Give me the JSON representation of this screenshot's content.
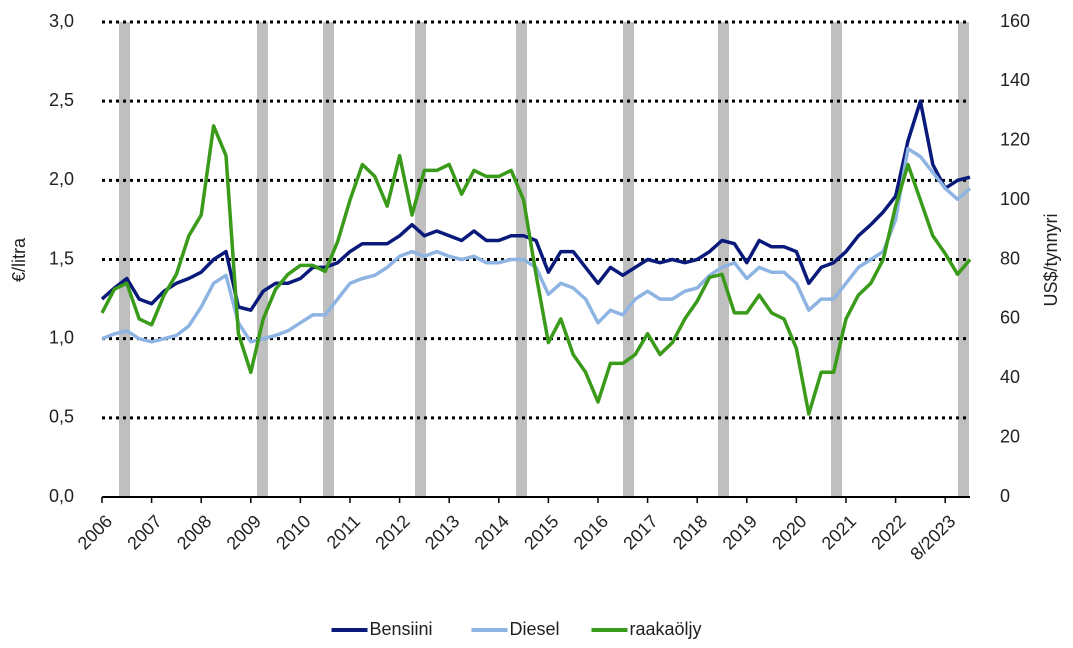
{
  "chart_data": {
    "type": "line",
    "categories": [
      "2006",
      null,
      null,
      null,
      "2007",
      null,
      null,
      null,
      "2008",
      null,
      null,
      null,
      "2009",
      null,
      null,
      null,
      "2010",
      null,
      null,
      null,
      "2011",
      null,
      null,
      null,
      "2012",
      null,
      null,
      null,
      "2013",
      null,
      null,
      null,
      "2014",
      null,
      null,
      null,
      "2015",
      null,
      null,
      null,
      "2016",
      null,
      null,
      null,
      "2017",
      null,
      null,
      null,
      "2018",
      null,
      null,
      null,
      "2019",
      null,
      null,
      null,
      "2020",
      null,
      null,
      null,
      "2021",
      null,
      null,
      null,
      "2022",
      null,
      null,
      null,
      "8/2023",
      null,
      null
    ],
    "ylabel": "€/litra",
    "y2label": "US$/tynnyri",
    "ylim": [
      0,
      3
    ],
    "yticks": [
      {
        "value": 0,
        "label": "0,0"
      },
      {
        "value": 0.5,
        "label": "0,5"
      },
      {
        "value": 1,
        "label": "1,0"
      },
      {
        "value": 1.5,
        "label": "1,5"
      },
      {
        "value": 2,
        "label": "2,0"
      },
      {
        "value": 2.5,
        "label": "2,5"
      },
      {
        "value": 3,
        "label": "3,0"
      }
    ],
    "y2lim": [
      0,
      160
    ],
    "y2ticks": [
      0,
      20,
      40,
      60,
      80,
      100,
      120,
      140,
      160
    ],
    "grid": true,
    "legend": "bottom",
    "series": [
      {
        "name": "Bensiini",
        "color": "#0a1a7a",
        "values": [
          1.25,
          1.32,
          1.38,
          1.25,
          1.22,
          1.3,
          1.35,
          1.38,
          1.42,
          1.5,
          1.55,
          1.2,
          1.18,
          1.3,
          1.35,
          1.35,
          1.38,
          1.45,
          1.45,
          1.48,
          1.55,
          1.6,
          1.6,
          1.6,
          1.65,
          1.72,
          1.65,
          1.68,
          1.65,
          1.62,
          1.68,
          1.62,
          1.62,
          1.65,
          1.65,
          1.62,
          1.42,
          1.55,
          1.55,
          1.45,
          1.35,
          1.45,
          1.4,
          1.45,
          1.5,
          1.48,
          1.5,
          1.48,
          1.5,
          1.55,
          1.62,
          1.6,
          1.48,
          1.62,
          1.58,
          1.58,
          1.55,
          1.35,
          1.45,
          1.48,
          1.55,
          1.65,
          1.72,
          1.8,
          1.9,
          2.25,
          2.5,
          2.1,
          1.95,
          2.0,
          2.02
        ]
      },
      {
        "name": "Diesel",
        "color": "#8db4e2",
        "values": [
          1.0,
          1.03,
          1.05,
          1.0,
          0.98,
          1.0,
          1.02,
          1.08,
          1.2,
          1.35,
          1.4,
          1.1,
          0.98,
          1.0,
          1.02,
          1.05,
          1.1,
          1.15,
          1.15,
          1.25,
          1.35,
          1.38,
          1.4,
          1.45,
          1.52,
          1.55,
          1.52,
          1.55,
          1.52,
          1.5,
          1.52,
          1.48,
          1.48,
          1.5,
          1.5,
          1.45,
          1.28,
          1.35,
          1.32,
          1.25,
          1.1,
          1.18,
          1.15,
          1.25,
          1.3,
          1.25,
          1.25,
          1.3,
          1.32,
          1.4,
          1.45,
          1.48,
          1.38,
          1.45,
          1.42,
          1.42,
          1.35,
          1.18,
          1.25,
          1.25,
          1.35,
          1.45,
          1.5,
          1.55,
          1.75,
          2.2,
          2.15,
          2.05,
          1.95,
          1.88,
          1.95
        ]
      },
      {
        "name": "raakaöljy",
        "color": "#3a9a1a",
        "axis": "y2",
        "values": [
          62,
          70,
          72,
          60,
          58,
          68,
          75,
          88,
          95,
          125,
          115,
          55,
          42,
          60,
          70,
          75,
          78,
          78,
          76,
          86,
          100,
          112,
          108,
          98,
          115,
          95,
          110,
          110,
          112,
          102,
          110,
          108,
          108,
          110,
          100,
          75,
          52,
          60,
          48,
          42,
          32,
          45,
          45,
          48,
          55,
          48,
          52,
          60,
          66,
          74,
          75,
          62,
          62,
          68,
          62,
          60,
          50,
          28,
          42,
          42,
          60,
          68,
          72,
          80,
          98,
          112,
          100,
          88,
          82,
          75,
          80
        ]
      }
    ]
  }
}
